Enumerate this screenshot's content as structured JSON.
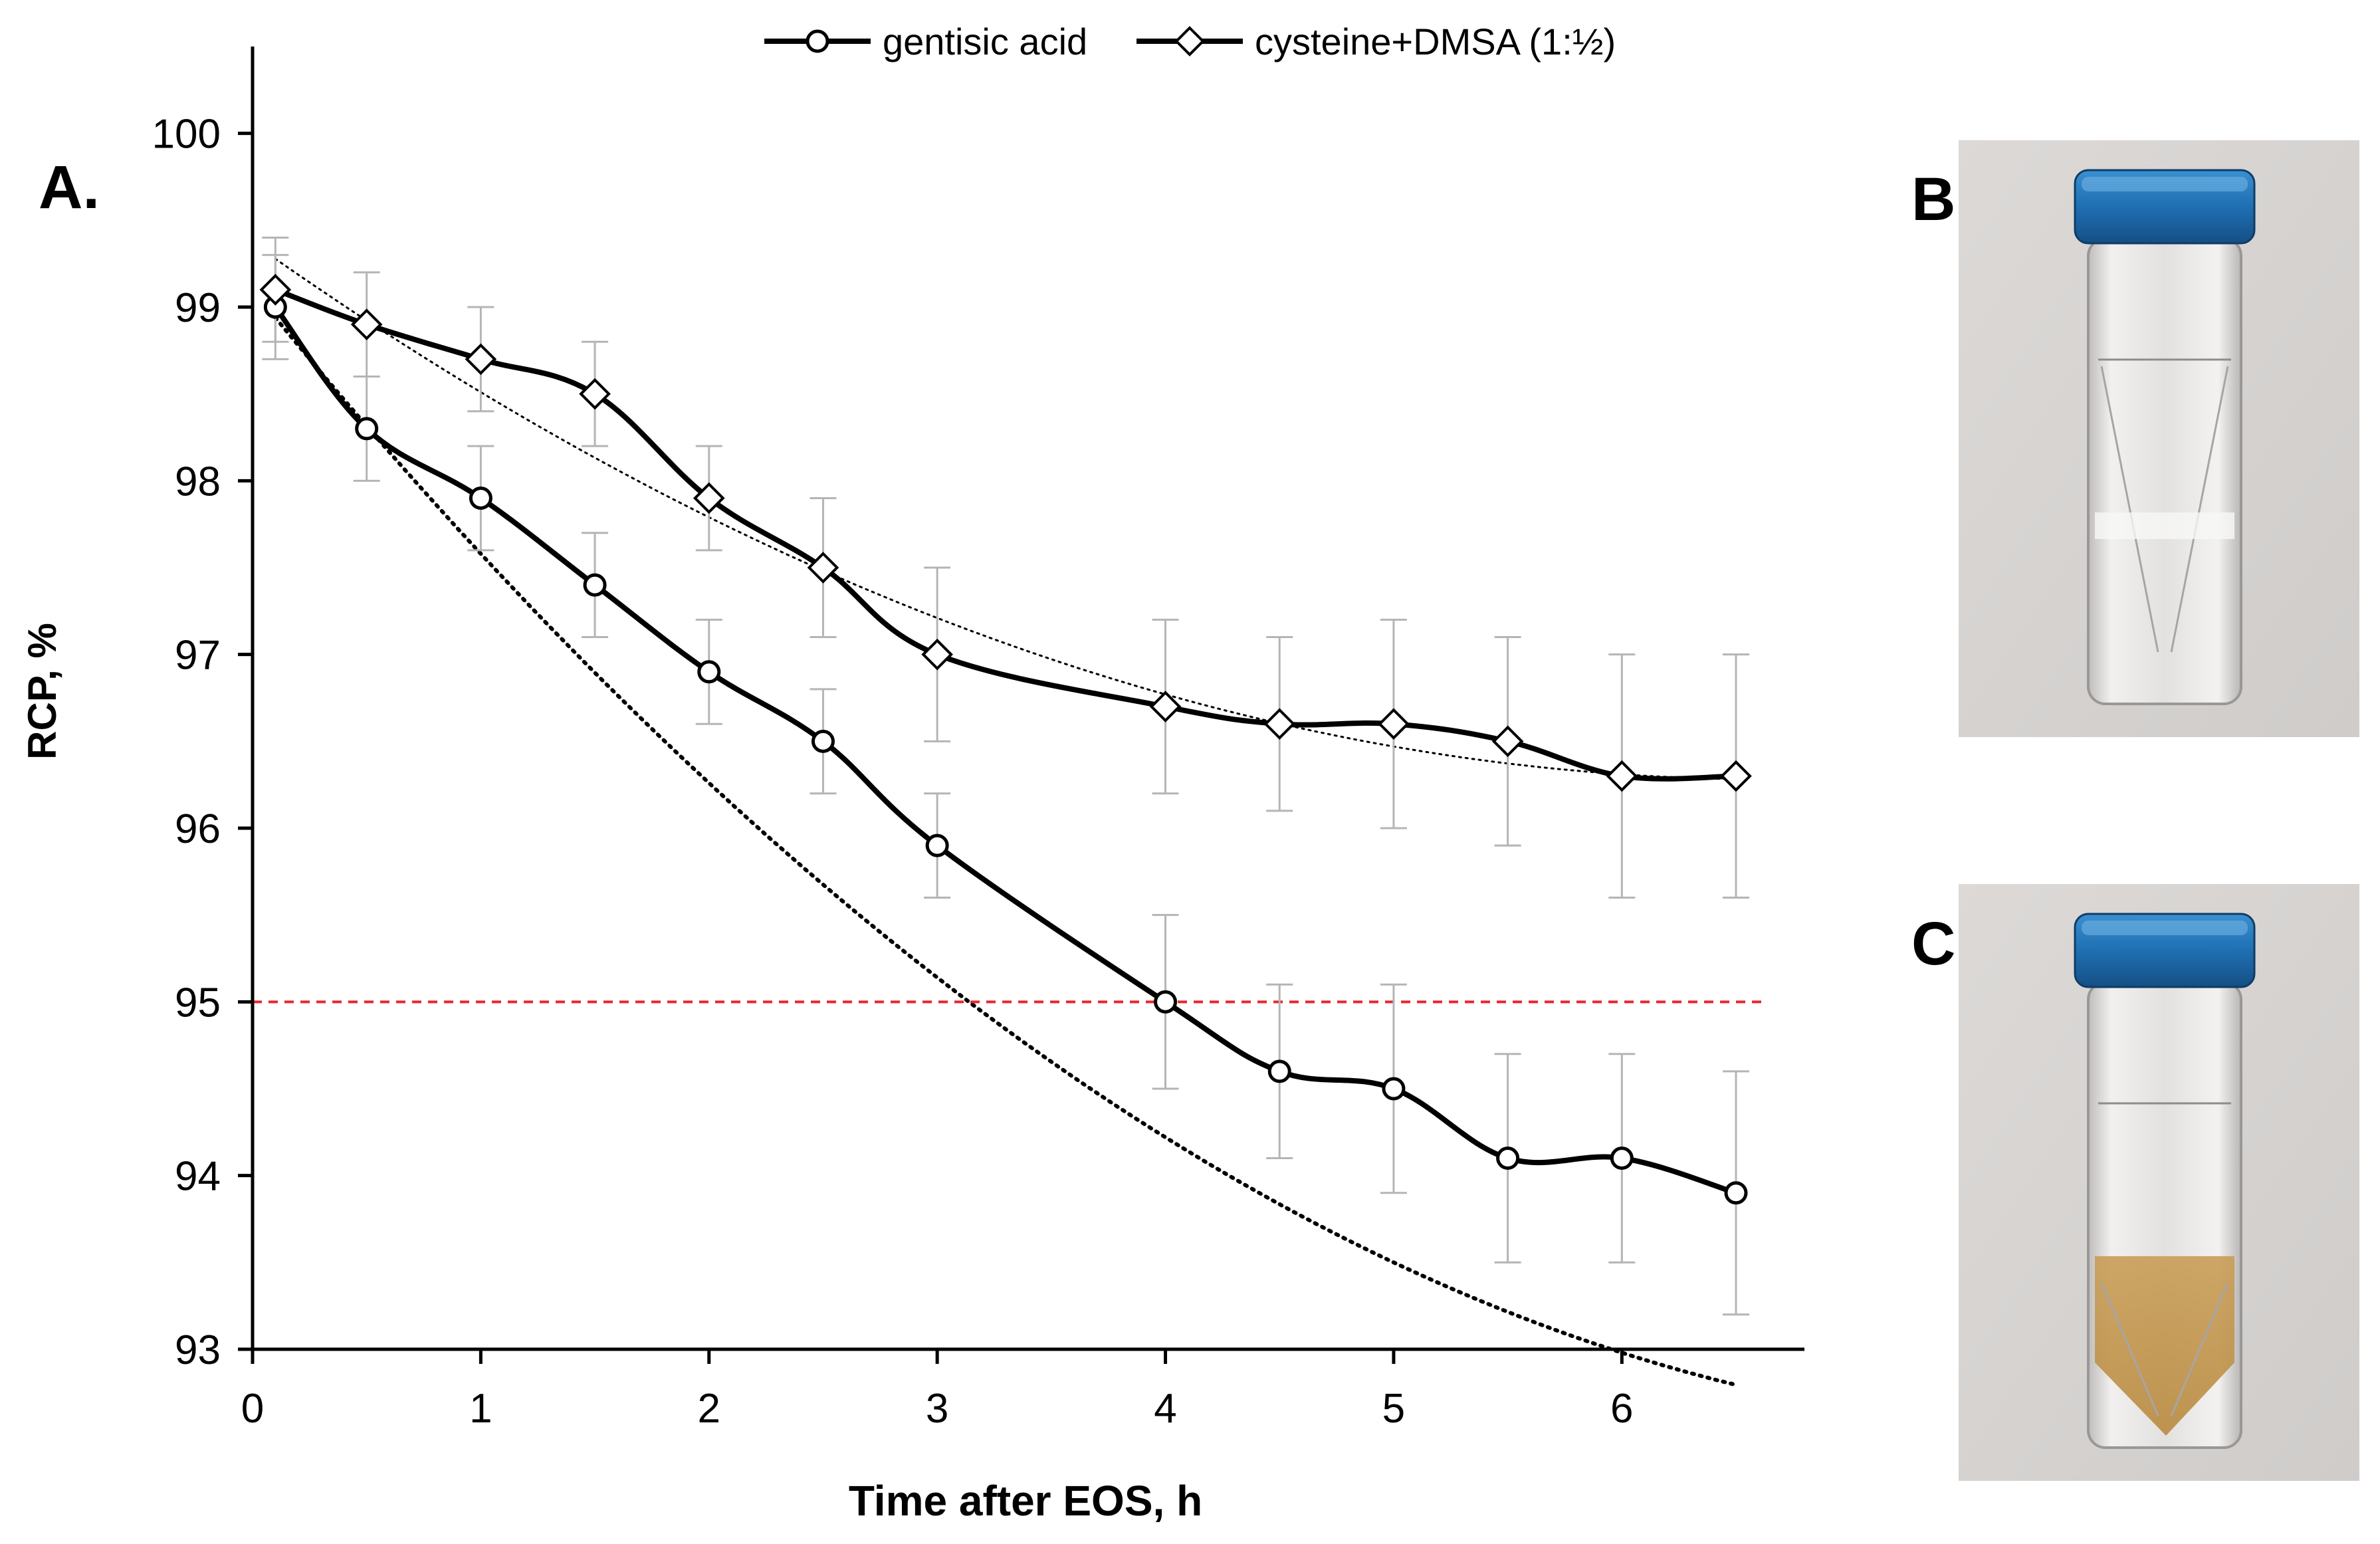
{
  "panels": {
    "a": "A.",
    "b": "B.",
    "c": "C."
  },
  "chart_data": {
    "type": "line",
    "xlabel": "Time after EOS, h",
    "ylabel": "RCP, %",
    "xlim": [
      0,
      6.8
    ],
    "ylim": [
      93,
      100.5
    ],
    "x_ticks": [
      0,
      1,
      2,
      3,
      4,
      5,
      6
    ],
    "y_ticks": [
      93,
      94,
      95,
      96,
      97,
      98,
      99,
      100
    ],
    "grid": false,
    "legend_position": "top",
    "reference_line": {
      "y": 95,
      "color": "#e8262b",
      "style": "dashed"
    },
    "series": [
      {
        "name": "gentisic acid",
        "marker": "circle",
        "x": [
          0.1,
          0.5,
          1,
          1.5,
          2,
          2.5,
          3,
          4,
          4.5,
          5,
          5.5,
          6,
          6.5
        ],
        "values": [
          99.0,
          98.3,
          97.9,
          97.4,
          96.9,
          96.5,
          95.9,
          95.0,
          94.6,
          94.5,
          94.1,
          94.1,
          93.9
        ],
        "error": [
          0.3,
          0.3,
          0.3,
          0.3,
          0.3,
          0.3,
          0.3,
          0.5,
          0.5,
          0.6,
          0.6,
          0.6,
          0.7
        ],
        "trendline": {
          "style": "dotted",
          "coeffs": [
            99.1,
            -1.62,
            0.1
          ]
        }
      },
      {
        "name": "cysteine+DMSA (1:½)",
        "marker": "diamond",
        "x": [
          0.1,
          0.5,
          1,
          1.5,
          2,
          2.5,
          3,
          4,
          4.5,
          5,
          5.5,
          6,
          6.5
        ],
        "values": [
          99.1,
          98.9,
          98.7,
          98.5,
          97.9,
          97.5,
          97.0,
          96.7,
          96.6,
          96.6,
          96.5,
          96.3,
          96.3
        ],
        "error": [
          0.3,
          0.3,
          0.3,
          0.3,
          0.3,
          0.4,
          0.5,
          0.5,
          0.5,
          0.6,
          0.6,
          0.7,
          0.7
        ],
        "trendline": {
          "style": "dotted",
          "coeffs": [
            99.37,
            -0.93,
            0.07
          ]
        }
      }
    ],
    "colors": {
      "line": "#000000",
      "error_bar": "#b5b5b5",
      "marker_fill": "#ffffff"
    }
  },
  "photos": {
    "background": "#d8d5d3",
    "cap_color": "#1f6fb3",
    "b_solution": "colorless",
    "c_solution": "#c9a15e"
  }
}
